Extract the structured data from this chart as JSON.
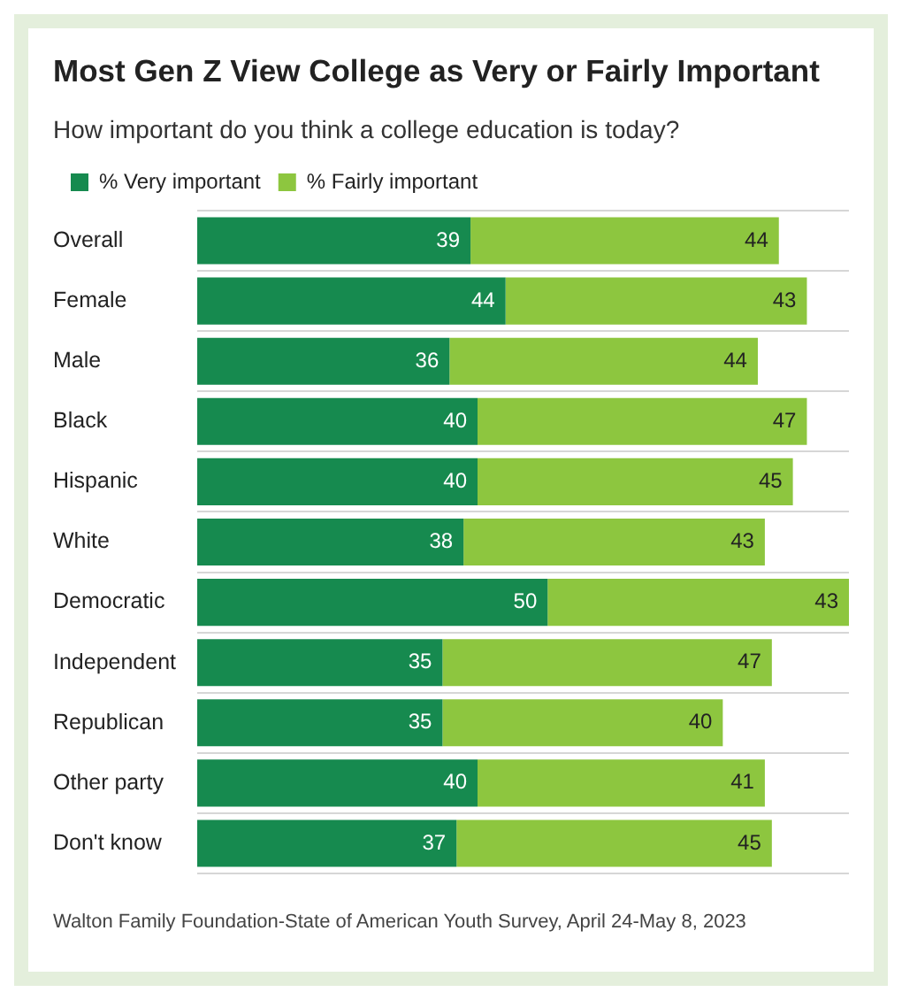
{
  "chart_data": {
    "type": "bar",
    "orientation": "horizontal",
    "stacked": true,
    "title": "Most Gen Z View College as Very or Fairly Important",
    "subtitle": "How important do you think a college education is today?",
    "categories": [
      "Overall",
      "Female",
      "Male",
      "Black",
      "Hispanic",
      "White",
      "Democratic",
      "Independent",
      "Republican",
      "Other party",
      "Don't know"
    ],
    "series": [
      {
        "name": "% Very important",
        "color": "#168a4f",
        "values": [
          39,
          44,
          36,
          40,
          40,
          38,
          50,
          35,
          35,
          40,
          37
        ]
      },
      {
        "name": "% Fairly important",
        "color": "#8dc63f",
        "values": [
          44,
          43,
          44,
          47,
          45,
          43,
          43,
          47,
          40,
          41,
          45
        ]
      }
    ],
    "data_labels": true,
    "grid": "y",
    "legend": "top left",
    "annotations": [
      "Walton Family Foundation-State of American Youth Survey, April 24-May 8, 2023"
    ]
  }
}
